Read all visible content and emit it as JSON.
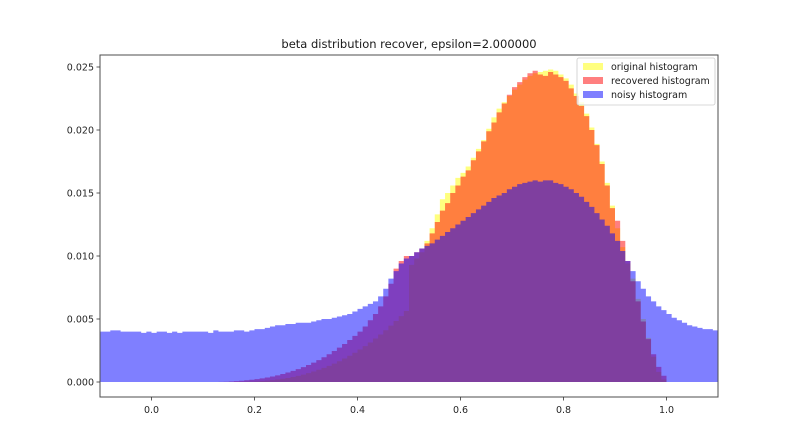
{
  "chart_data": {
    "type": "bar",
    "subtype": "overlaid-histogram",
    "title": "beta distribution recover, epsilon=2.000000",
    "xlabel": "",
    "ylabel": "",
    "xlim": [
      -0.1,
      1.1
    ],
    "ylim": [
      0.0,
      0.026
    ],
    "grid": false,
    "legend_position": "upper right",
    "x_ticks": [
      0.0,
      0.2,
      0.4,
      0.6,
      0.8,
      1.0
    ],
    "x_tick_labels": [
      "0.0",
      "0.2",
      "0.4",
      "0.6",
      "0.8",
      "1.0"
    ],
    "y_ticks": [
      0.0,
      0.005,
      0.01,
      0.015,
      0.02,
      0.025
    ],
    "y_tick_labels": [
      "0.000",
      "0.005",
      "0.010",
      "0.015",
      "0.020",
      "0.025"
    ],
    "series": [
      {
        "name": "original histogram",
        "color": "#ffff00",
        "alpha": 0.5,
        "bin_start": 0.0,
        "bin_width": 0.01,
        "values": [
          0,
          0,
          0,
          0,
          0,
          0,
          0,
          0,
          0,
          0,
          0,
          0,
          0,
          0,
          0,
          0,
          0,
          0,
          2e-05,
          3e-05,
          5e-05,
          8e-05,
          0.00011,
          0.00015,
          0.0002,
          0.00026,
          0.00032,
          0.0004,
          0.00049,
          0.00059,
          0.0007,
          0.00083,
          0.00097,
          0.00112,
          0.00128,
          0.00146,
          0.00165,
          0.00186,
          0.00208,
          0.00232,
          0.00258,
          0.00285,
          0.00314,
          0.00345,
          0.00377,
          0.00411,
          0.00447,
          0.00484,
          0.00523,
          0.00563,
          0.0093,
          0.0098,
          0.0103,
          0.0112,
          0.0122,
          0.0133,
          0.0145,
          0.015,
          0.0156,
          0.0162,
          0.0166,
          0.0171,
          0.0178,
          0.0185,
          0.0192,
          0.0201,
          0.021,
          0.0217,
          0.0222,
          0.0227,
          0.0232,
          0.0236,
          0.024,
          0.0243,
          0.0245,
          0.0246,
          0.0247,
          0.0248,
          0.0247,
          0.0244,
          0.0241,
          0.0236,
          0.0229,
          0.0222,
          0.0213,
          0.0202,
          0.0189,
          0.0175,
          0.0158,
          0.014,
          0.0122,
          0.0107,
          0.0094,
          0.0082,
          0.0066,
          0.005,
          0.0035,
          0.002,
          0.0008,
          0.0002
        ]
      },
      {
        "name": "recovered histogram",
        "color": "#ff0000",
        "alpha": 0.5,
        "bin_start": 0.0,
        "bin_width": 0.01,
        "values": [
          0,
          0,
          0,
          0,
          0,
          0,
          0,
          0,
          0,
          0,
          0,
          0,
          0,
          1e-05,
          2e-05,
          4e-05,
          7e-05,
          0.0001,
          0.00014,
          0.00018,
          0.00023,
          0.00029,
          0.00036,
          0.00044,
          0.00053,
          0.00063,
          0.00075,
          0.00088,
          0.00102,
          0.00118,
          0.00135,
          0.00154,
          0.00174,
          0.00196,
          0.0022,
          0.00246,
          0.00273,
          0.00302,
          0.00333,
          0.00366,
          0.004,
          0.0044,
          0.0049,
          0.0054,
          0.006,
          0.0068,
          0.0078,
          0.009,
          0.0096,
          0.01,
          0.01,
          0.0103,
          0.0106,
          0.011,
          0.0118,
          0.0127,
          0.0136,
          0.0142,
          0.015,
          0.0156,
          0.0163,
          0.0168,
          0.0176,
          0.0183,
          0.0191,
          0.0199,
          0.0206,
          0.0214,
          0.0221,
          0.0228,
          0.0234,
          0.0238,
          0.0242,
          0.0245,
          0.0247,
          0.0244,
          0.0243,
          0.0246,
          0.0244,
          0.0242,
          0.0239,
          0.0233,
          0.0227,
          0.0219,
          0.0211,
          0.02,
          0.0188,
          0.0173,
          0.0156,
          0.0138,
          0.0128,
          0.0112,
          0.0096,
          0.008,
          0.0064,
          0.0048,
          0.0034,
          0.0022,
          0.0012,
          0.0005
        ]
      },
      {
        "name": "noisy histogram",
        "color": "#0000ff",
        "alpha": 0.5,
        "bin_start": -0.1,
        "bin_width": 0.01,
        "values": [
          0.004,
          0.004,
          0.0041,
          0.0041,
          0.004,
          0.004,
          0.004,
          0.004,
          0.0039,
          0.004,
          0.0039,
          0.004,
          0.004,
          0.0039,
          0.004,
          0.0039,
          0.004,
          0.004,
          0.004,
          0.004,
          0.004,
          0.0039,
          0.0041,
          0.004,
          0.004,
          0.004,
          0.0041,
          0.0041,
          0.004,
          0.0041,
          0.0042,
          0.0042,
          0.0043,
          0.0044,
          0.0045,
          0.0045,
          0.0046,
          0.0046,
          0.0047,
          0.0047,
          0.0047,
          0.0048,
          0.0049,
          0.005,
          0.005,
          0.0051,
          0.0052,
          0.0053,
          0.0054,
          0.0056,
          0.0058,
          0.006,
          0.0062,
          0.0064,
          0.0068,
          0.0074,
          0.0082,
          0.0088,
          0.0094,
          0.0098,
          0.01,
          0.0103,
          0.0106,
          0.0108,
          0.011,
          0.0113,
          0.0116,
          0.0119,
          0.0122,
          0.0125,
          0.0128,
          0.0131,
          0.0134,
          0.0137,
          0.014,
          0.0143,
          0.0146,
          0.0148,
          0.015,
          0.0153,
          0.0155,
          0.0157,
          0.0158,
          0.0159,
          0.016,
          0.0159,
          0.016,
          0.016,
          0.0158,
          0.0157,
          0.0155,
          0.0153,
          0.015,
          0.0147,
          0.0143,
          0.0139,
          0.0134,
          0.0129,
          0.0124,
          0.0118,
          0.0112,
          0.0104,
          0.0096,
          0.0088,
          0.008,
          0.0074,
          0.0068,
          0.0064,
          0.006,
          0.0057,
          0.0054,
          0.0051,
          0.0049,
          0.0047,
          0.0045,
          0.0044,
          0.0043,
          0.0042,
          0.0042,
          0.0041
        ]
      }
    ]
  },
  "legend": {
    "items": [
      {
        "label": "original histogram",
        "color": "#ffff00"
      },
      {
        "label": "recovered histogram",
        "color": "#ff0000"
      },
      {
        "label": "noisy histogram",
        "color": "#0000ff"
      }
    ]
  }
}
